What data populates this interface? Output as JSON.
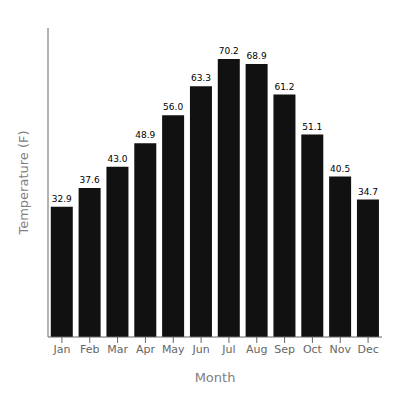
{
  "chart_data": {
    "type": "bar",
    "categories": [
      "Jan",
      "Feb",
      "Mar",
      "Apr",
      "May",
      "Jun",
      "Jul",
      "Aug",
      "Sep",
      "Oct",
      "Nov",
      "Dec"
    ],
    "values": [
      32.9,
      37.6,
      43.0,
      48.9,
      56.0,
      63.3,
      70.2,
      68.9,
      61.2,
      51.1,
      40.5,
      34.7
    ],
    "value_labels": [
      "32.9",
      "37.6",
      "43.0",
      "48.9",
      "56.0",
      "63.3",
      "70.2",
      "68.9",
      "61.2",
      "51.1",
      "40.5",
      "34.7"
    ],
    "color": "#111111",
    "xlabel": "Month",
    "ylabel": "Temperature (F)",
    "ylim": [
      0,
      78
    ],
    "tick_labels": "x",
    "data_labels": true,
    "grid": false
  }
}
